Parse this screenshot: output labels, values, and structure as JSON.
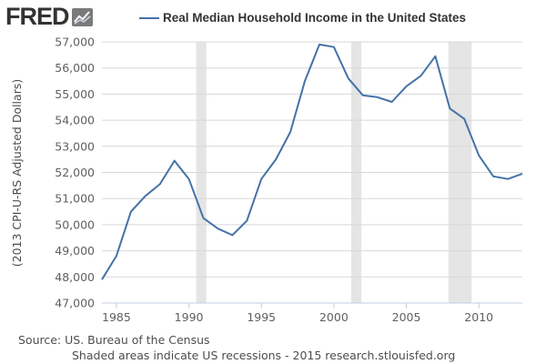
{
  "brand": {
    "name": "FRED",
    "line_color": "#4572A7"
  },
  "legend": {
    "label": "Real Median Household Income in the United States"
  },
  "footer": {
    "source": "Source: US. Bureau of the Census",
    "note": "Shaded areas indicate US recessions - 2015 research.stlouisfed.org"
  },
  "chart_data": {
    "type": "line",
    "title": "",
    "ylabel": "(2013 CPI-U-RS Adjusted Dollars)",
    "xlabel": "",
    "xlim": [
      1984,
      2013
    ],
    "ylim": [
      47000,
      57000
    ],
    "y_ticks": [
      47000,
      48000,
      49000,
      50000,
      51000,
      52000,
      53000,
      54000,
      55000,
      56000,
      57000
    ],
    "y_tick_labels": [
      "47,000",
      "48,000",
      "49,000",
      "50,000",
      "51,000",
      "52,000",
      "53,000",
      "54,000",
      "55,000",
      "56,000",
      "57,000"
    ],
    "x_ticks": [
      1985,
      1990,
      1995,
      2000,
      2005,
      2010
    ],
    "x_tick_labels": [
      "1985",
      "1990",
      "1995",
      "2000",
      "2005",
      "2010"
    ],
    "grid": "horizontal",
    "legend_position": "top",
    "recessions": [
      [
        1990.5,
        1991.2
      ],
      [
        2001.2,
        2001.9
      ],
      [
        2007.9,
        2009.5
      ]
    ],
    "recession_color": "#E5E5E5",
    "series": [
      {
        "name": "Real Median Household Income in the United States",
        "color": "#4572A7",
        "x": [
          1984,
          1985,
          1986,
          1987,
          1988,
          1989,
          1990,
          1991,
          1992,
          1993,
          1994,
          1995,
          1996,
          1997,
          1998,
          1999,
          2000,
          2001,
          2002,
          2003,
          2004,
          2005,
          2006,
          2007,
          2008,
          2009,
          2010,
          2011,
          2012,
          2013
        ],
        "y": [
          47900,
          48800,
          50500,
          51100,
          51550,
          52450,
          51750,
          50250,
          49850,
          49600,
          50150,
          51750,
          52500,
          53550,
          55500,
          56900,
          56800,
          55600,
          54950,
          54880,
          54700,
          55300,
          55700,
          56450,
          54450,
          54050,
          52650,
          51850,
          51750,
          51950
        ]
      }
    ]
  }
}
